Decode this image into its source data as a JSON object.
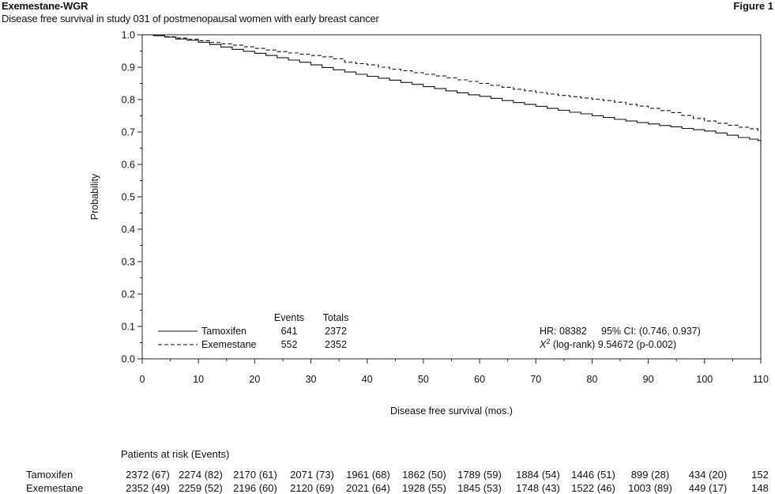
{
  "header": {
    "title": "Exemestane-WGR",
    "subtitle": "Disease free survival in study 031 of postmenopausal women with early breast cancer",
    "figure_label": "Figure 1"
  },
  "chart_data": {
    "type": "line",
    "step": true,
    "xlabel": "Disease free survival (mos.)",
    "ylabel": "Probability",
    "xlim": [
      0,
      110
    ],
    "ylim": [
      0.0,
      1.0
    ],
    "xticks": [
      0,
      10,
      20,
      30,
      40,
      50,
      60,
      70,
      80,
      90,
      100,
      110
    ],
    "yticks": [
      "0.0",
      "0.1",
      "0.2",
      "0.3",
      "0.4",
      "0.5",
      "0.6",
      "0.7",
      "0.8",
      "0.9",
      "1.0"
    ],
    "grid": false,
    "series": [
      {
        "name": "Tamoxifen",
        "line_style": "solid",
        "x": [
          0,
          2,
          4,
          6,
          8,
          10,
          12,
          14,
          16,
          18,
          20,
          22,
          24,
          26,
          28,
          30,
          32,
          34,
          36,
          38,
          40,
          42,
          44,
          46,
          48,
          50,
          52,
          54,
          56,
          58,
          60,
          62,
          64,
          66,
          68,
          70,
          72,
          74,
          76,
          78,
          80,
          82,
          84,
          86,
          88,
          90,
          92,
          94,
          96,
          98,
          100,
          102,
          104,
          106,
          108,
          109.5,
          110
        ],
        "y": [
          1.0,
          0.997,
          0.993,
          0.987,
          0.983,
          0.977,
          0.97,
          0.962,
          0.955,
          0.949,
          0.943,
          0.936,
          0.929,
          0.922,
          0.915,
          0.907,
          0.899,
          0.892,
          0.885,
          0.878,
          0.872,
          0.866,
          0.86,
          0.853,
          0.847,
          0.84,
          0.834,
          0.827,
          0.821,
          0.815,
          0.81,
          0.804,
          0.797,
          0.791,
          0.785,
          0.779,
          0.773,
          0.767,
          0.761,
          0.756,
          0.75,
          0.745,
          0.739,
          0.734,
          0.729,
          0.725,
          0.72,
          0.716,
          0.711,
          0.707,
          0.703,
          0.697,
          0.69,
          0.683,
          0.678,
          0.674,
          0.663
        ]
      },
      {
        "name": "Exemestane",
        "line_style": "dashed",
        "x": [
          0,
          2,
          4,
          6,
          8,
          10,
          12,
          14,
          16,
          18,
          20,
          22,
          24,
          26,
          28,
          30,
          32,
          34,
          36,
          38,
          40,
          42,
          44,
          46,
          48,
          50,
          52,
          54,
          56,
          58,
          60,
          62,
          64,
          66,
          68,
          70,
          72,
          74,
          76,
          78,
          80,
          82,
          84,
          86,
          88,
          90,
          92,
          94,
          96,
          98,
          100,
          102,
          104,
          106,
          108,
          109.5,
          110
        ],
        "y": [
          1.0,
          0.998,
          0.994,
          0.99,
          0.986,
          0.982,
          0.976,
          0.972,
          0.968,
          0.963,
          0.958,
          0.953,
          0.948,
          0.944,
          0.94,
          0.936,
          0.932,
          0.926,
          0.915,
          0.911,
          0.907,
          0.9,
          0.894,
          0.889,
          0.883,
          0.878,
          0.873,
          0.867,
          0.861,
          0.856,
          0.85,
          0.844,
          0.838,
          0.832,
          0.827,
          0.822,
          0.817,
          0.813,
          0.809,
          0.805,
          0.801,
          0.797,
          0.792,
          0.785,
          0.78,
          0.773,
          0.766,
          0.76,
          0.751,
          0.742,
          0.734,
          0.727,
          0.721,
          0.715,
          0.71,
          0.704,
          0.695
        ]
      }
    ],
    "legend": {
      "events_header": "Events",
      "totals_header": "Totals",
      "rows": [
        {
          "name": "Tamoxifen",
          "events": "641",
          "totals": "2372"
        },
        {
          "name": "Exemestane",
          "events": "552",
          "totals": "2352"
        }
      ]
    },
    "annotations": {
      "hr": "HR: 08382",
      "ci": "95% CI: (0.746, 0.937)",
      "chi_symbol": "X",
      "chi_sup": "2",
      "chi_rest": " (log-rank)  9.54672 (p-0.002)"
    }
  },
  "risk_table": {
    "header": "Patients at risk  (Events)",
    "rows": [
      {
        "name": "Tamoxifen",
        "values": [
          "2372 (67)",
          "2274 (82)",
          "2170 (61)",
          "2071 (73)",
          "1961 (68)",
          "1862 (50)",
          "1789 (59)",
          "1884 (54)",
          "1446 (51)",
          "899 (28)",
          "434 (20)",
          "152"
        ]
      },
      {
        "name": "Exemestane",
        "values": [
          "2352 (49)",
          "2259 (52)",
          "2196 (60)",
          "2120 (69)",
          "2021 (64)",
          "1928 (55)",
          "1845 (53)",
          "1748 (43)",
          "1522 (46)",
          "1003 (89)",
          "449 (17)",
          "148"
        ]
      }
    ]
  }
}
